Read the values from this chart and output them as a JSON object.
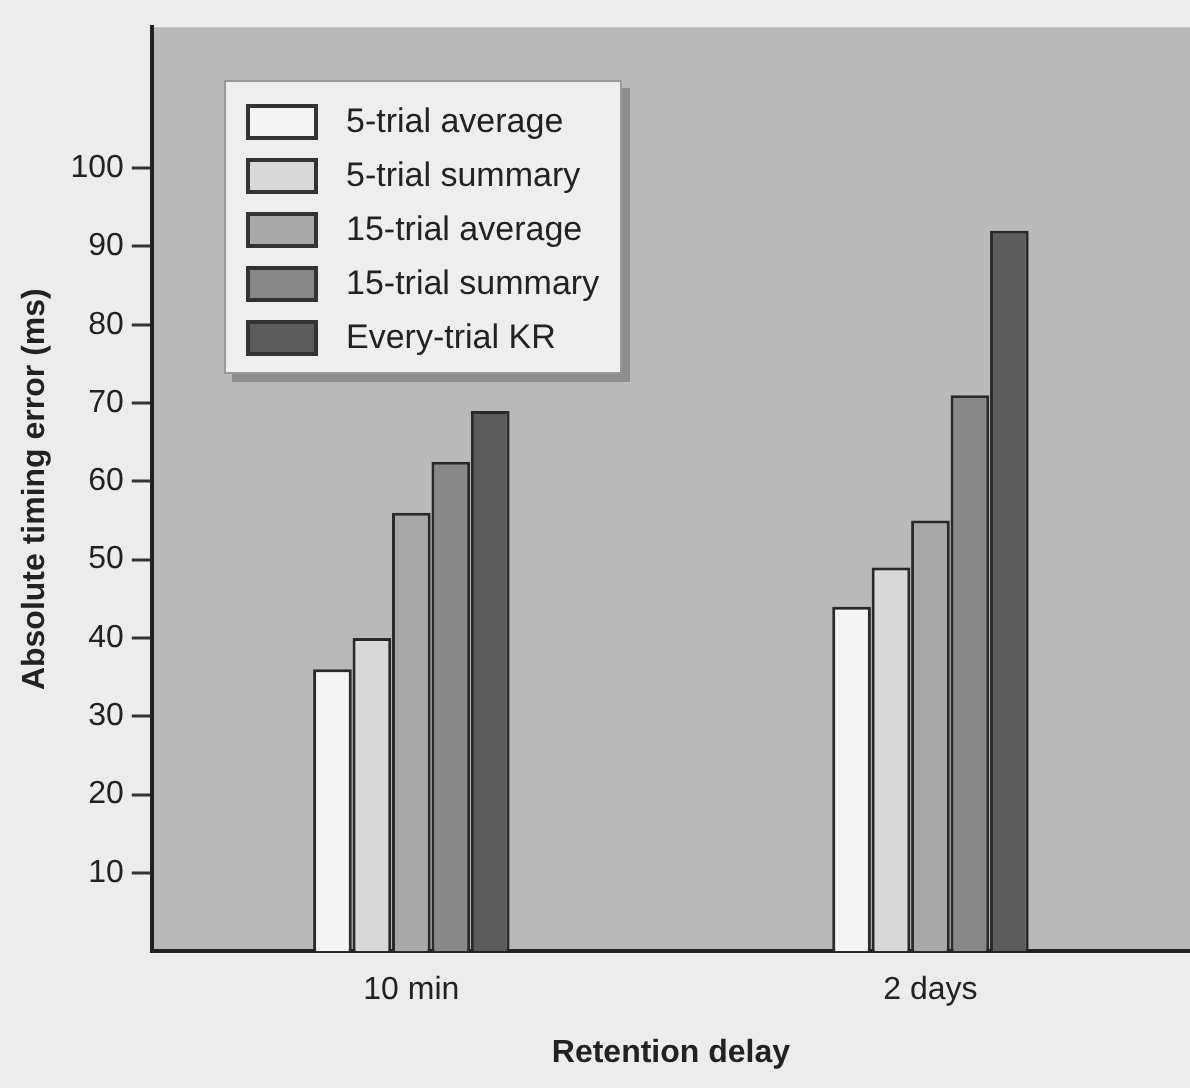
{
  "chart_data": {
    "type": "bar",
    "xlabel": "Retention delay",
    "ylabel": "Absolute timing error (ms)",
    "categories": [
      "10 min",
      "2 days"
    ],
    "series": [
      {
        "name": "5-trial average",
        "color": "#f4f4f4",
        "values": [
          36,
          44
        ]
      },
      {
        "name": "5-trial summary",
        "color": "#d8d8d8",
        "values": [
          40,
          49
        ]
      },
      {
        "name": "15-trial average",
        "color": "#a8a8a8",
        "values": [
          56,
          55
        ]
      },
      {
        "name": "15-trial summary",
        "color": "#888888",
        "values": [
          62.5,
          71
        ]
      },
      {
        "name": "Every-trial KR",
        "color": "#5c5c5c",
        "values": [
          69,
          92
        ]
      }
    ],
    "ylim": [
      0,
      118
    ],
    "yticks": [
      10,
      20,
      30,
      40,
      50,
      60,
      70,
      80,
      90,
      100
    ],
    "grid": false,
    "legend": "top left"
  }
}
